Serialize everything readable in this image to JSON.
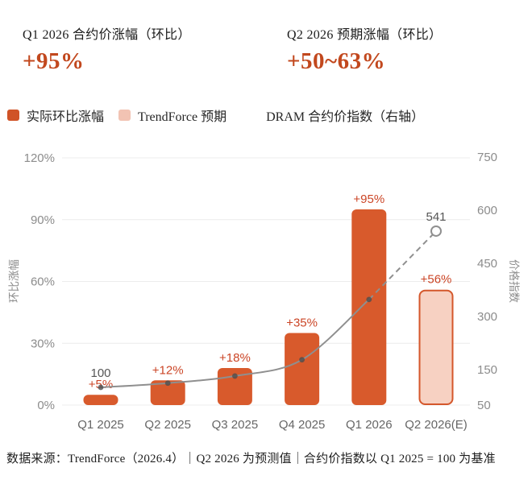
{
  "header": {
    "left": {
      "title": "Q1 2026 合约价涨幅（环比）",
      "value": "+95%"
    },
    "right": {
      "title": "Q2 2026 预期涨幅（环比）",
      "value": "+50~63%"
    }
  },
  "legend": {
    "items": [
      {
        "label": "实际环比涨幅",
        "swatch": true,
        "swatch_color": "#d05327"
      },
      {
        "label": "TrendForce 预期",
        "swatch": true,
        "swatch_color": "#f2c3b3"
      },
      {
        "label": "DRAM 合约价指数（右轴）",
        "swatch": false,
        "swatch_color": null
      }
    ]
  },
  "footer": {
    "text": "数据来源：TrendForce（2026.4）｜Q2 2026 为预测值｜合约价指数以 Q1 2025 = 100 为基准"
  },
  "colors": {
    "bar": "#d85a2c",
    "forecast_fill": "#f7d1c2",
    "forecast_border": "#d4572b",
    "bar_label": "#cb4526",
    "line": "#8f8f8f",
    "line_dot": "#4e4e4e",
    "note_label": "#565656",
    "tick": "#8c8c8c",
    "x_label": "#666666",
    "grid": "#ececec",
    "header_value": "#c2481e"
  },
  "chart_data": {
    "type": "bar",
    "categories": [
      "Q1 2025",
      "Q2 2025",
      "Q3 2025",
      "Q4 2025",
      "Q1 2026",
      "Q2 2026(E)"
    ],
    "series": [
      {
        "name": "实际环比涨幅",
        "series_type": "bar",
        "axis": "left",
        "values": [
          5,
          12,
          18,
          35,
          95,
          null
        ],
        "data_labels": [
          "+5%",
          "+12%",
          "+18%",
          "+35%",
          "+95%",
          null
        ]
      },
      {
        "name": "TrendForce 预期",
        "series_type": "bar",
        "axis": "left",
        "forecast": true,
        "values": [
          null,
          null,
          null,
          null,
          null,
          56
        ],
        "data_labels": [
          null,
          null,
          null,
          null,
          null,
          "+56%"
        ]
      },
      {
        "name": "DRAM 合约价指数（右轴）",
        "series_type": "line",
        "axis": "right",
        "values": [
          100,
          112,
          132,
          178,
          348,
          541
        ],
        "data_labels": [
          "100",
          null,
          null,
          null,
          null,
          "541"
        ],
        "solid_until_index": 4
      }
    ],
    "left_axis": {
      "title": "环比涨幅",
      "tick_labels": [
        "120%",
        "90%",
        "60%",
        "30%",
        "0%"
      ],
      "tick_values": [
        120,
        90,
        60,
        30,
        0
      ],
      "min": 0,
      "max": 120,
      "grid": true
    },
    "right_axis": {
      "title": "价格指数",
      "tick_labels": [
        "750",
        "600",
        "450",
        "300",
        "150",
        "50"
      ],
      "tick_values": [
        750,
        600,
        450,
        300,
        150,
        50
      ],
      "min": 50,
      "max": 750,
      "grid": false
    },
    "legend_position": "top-left",
    "title": "",
    "xlabel": "",
    "ylabel": "环比涨幅",
    "ylabel_right": "价格指数"
  }
}
